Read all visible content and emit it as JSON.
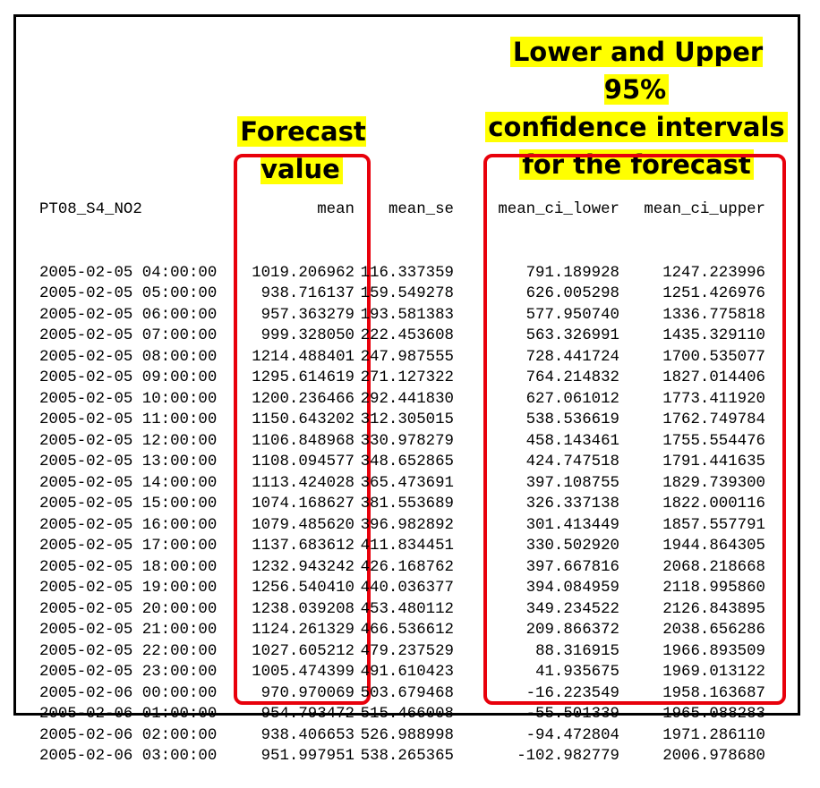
{
  "annotations": {
    "forecast_label": "Forecast value",
    "ci_label_lines": [
      "Lower and Upper 95%",
      "confidence intervals",
      "for the forecast"
    ]
  },
  "colors": {
    "highlight": "#ffff00",
    "box": "#e8000b",
    "border": "#000000"
  },
  "table": {
    "headers": [
      "PT08_S4_NO2",
      "mean",
      "mean_se",
      "mean_ci_lower",
      "mean_ci_upper"
    ],
    "rows": [
      [
        "2005-02-05 04:00:00",
        "1019.206962",
        "116.337359",
        "791.189928",
        "1247.223996"
      ],
      [
        "2005-02-05 05:00:00",
        "938.716137",
        "159.549278",
        "626.005298",
        "1251.426976"
      ],
      [
        "2005-02-05 06:00:00",
        "957.363279",
        "193.581383",
        "577.950740",
        "1336.775818"
      ],
      [
        "2005-02-05 07:00:00",
        "999.328050",
        "222.453608",
        "563.326991",
        "1435.329110"
      ],
      [
        "2005-02-05 08:00:00",
        "1214.488401",
        "247.987555",
        "728.441724",
        "1700.535077"
      ],
      [
        "2005-02-05 09:00:00",
        "1295.614619",
        "271.127322",
        "764.214832",
        "1827.014406"
      ],
      [
        "2005-02-05 10:00:00",
        "1200.236466",
        "292.441830",
        "627.061012",
        "1773.411920"
      ],
      [
        "2005-02-05 11:00:00",
        "1150.643202",
        "312.305015",
        "538.536619",
        "1762.749784"
      ],
      [
        "2005-02-05 12:00:00",
        "1106.848968",
        "330.978279",
        "458.143461",
        "1755.554476"
      ],
      [
        "2005-02-05 13:00:00",
        "1108.094577",
        "348.652865",
        "424.747518",
        "1791.441635"
      ],
      [
        "2005-02-05 14:00:00",
        "1113.424028",
        "365.473691",
        "397.108755",
        "1829.739300"
      ],
      [
        "2005-02-05 15:00:00",
        "1074.168627",
        "381.553689",
        "326.337138",
        "1822.000116"
      ],
      [
        "2005-02-05 16:00:00",
        "1079.485620",
        "396.982892",
        "301.413449",
        "1857.557791"
      ],
      [
        "2005-02-05 17:00:00",
        "1137.683612",
        "411.834451",
        "330.502920",
        "1944.864305"
      ],
      [
        "2005-02-05 18:00:00",
        "1232.943242",
        "426.168762",
        "397.667816",
        "2068.218668"
      ],
      [
        "2005-02-05 19:00:00",
        "1256.540410",
        "440.036377",
        "394.084959",
        "2118.995860"
      ],
      [
        "2005-02-05 20:00:00",
        "1238.039208",
        "453.480112",
        "349.234522",
        "2126.843895"
      ],
      [
        "2005-02-05 21:00:00",
        "1124.261329",
        "466.536612",
        "209.866372",
        "2038.656286"
      ],
      [
        "2005-02-05 22:00:00",
        "1027.605212",
        "479.237529",
        "88.316915",
        "1966.893509"
      ],
      [
        "2005-02-05 23:00:00",
        "1005.474399",
        "491.610423",
        "41.935675",
        "1969.013122"
      ],
      [
        "2005-02-06 00:00:00",
        "970.970069",
        "503.679468",
        "-16.223549",
        "1958.163687"
      ],
      [
        "2005-02-06 01:00:00",
        "954.793472",
        "515.466008",
        "-55.501339",
        "1965.088283"
      ],
      [
        "2005-02-06 02:00:00",
        "938.406653",
        "526.988998",
        "-94.472804",
        "1971.286110"
      ],
      [
        "2005-02-06 03:00:00",
        "951.997951",
        "538.265365",
        "-102.982779",
        "2006.978680"
      ]
    ]
  }
}
